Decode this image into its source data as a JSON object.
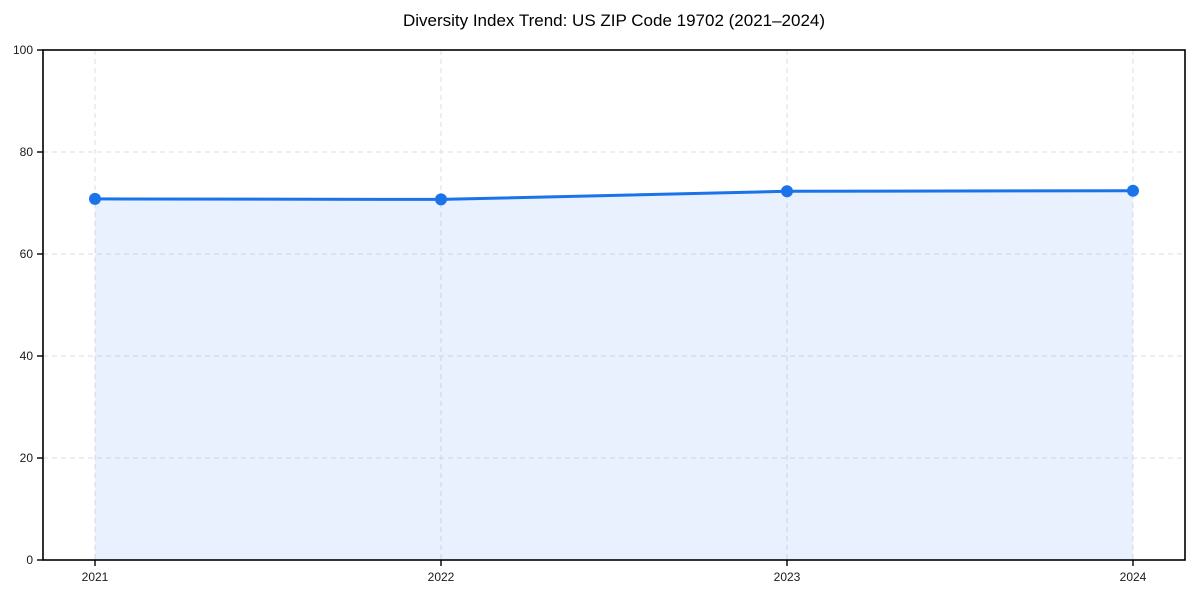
{
  "page": {
    "background": "#ffffff"
  },
  "chart_data": {
    "type": "area",
    "title": "Diversity Index Trend: US ZIP Code 19702 (2021–2024)",
    "xlabel": "",
    "ylabel": "",
    "categories": [
      "2021",
      "2022",
      "2023",
      "2024"
    ],
    "series": [
      {
        "name": "Diversity Index",
        "values": [
          70.8,
          70.7,
          72.3,
          72.4
        ]
      }
    ],
    "ylim": [
      0,
      100
    ],
    "yticks": [
      0,
      20,
      40,
      60,
      80,
      100
    ],
    "grid": true,
    "grid_style": "dashed",
    "legend": "none",
    "line_color": "#1a73e8",
    "marker_color": "#1a73e8",
    "fill_color": "#1a73e8",
    "fill_opacity": 0.1,
    "grid_color": "#dedede",
    "axis_color": "#000000",
    "tick_label_color": "#1a1a1a",
    "title_color": "#000000"
  }
}
